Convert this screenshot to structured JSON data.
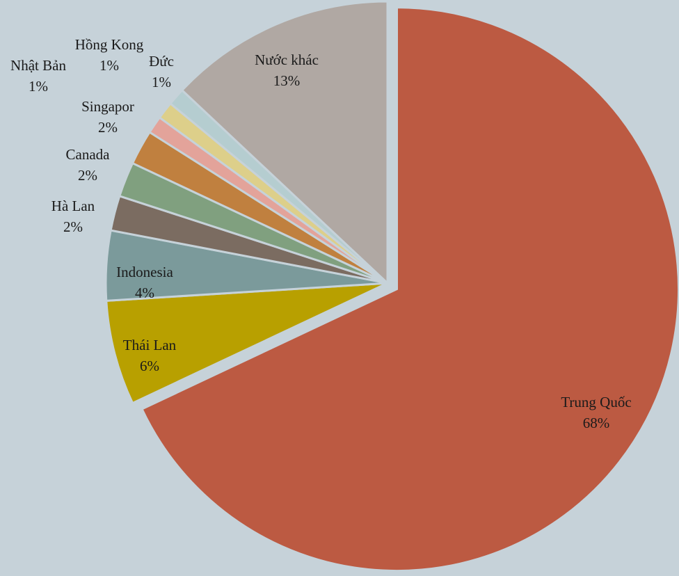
{
  "chart_data": {
    "type": "pie",
    "categories": [
      "Trung Quốc",
      "Thái Lan",
      "Indonesia",
      "Hà Lan",
      "Canada",
      "Singapor",
      "Nhật Bản",
      "Hồng Kong",
      "Đức",
      "Nước khác"
    ],
    "values": [
      68,
      6,
      4,
      2,
      2,
      2,
      1,
      1,
      1,
      13
    ],
    "value_labels": [
      "68%",
      "6%",
      "4%",
      "2%",
      "2%",
      "2%",
      "1%",
      "1%",
      "1%",
      "13%"
    ],
    "colors": [
      "#bc5a42",
      "#b8a000",
      "#7b9a9b",
      "#7b6c61",
      "#80a07f",
      "#c0803f",
      "#e3a39a",
      "#ddcf8a",
      "#b5cdd0",
      "#b0a8a3"
    ]
  }
}
